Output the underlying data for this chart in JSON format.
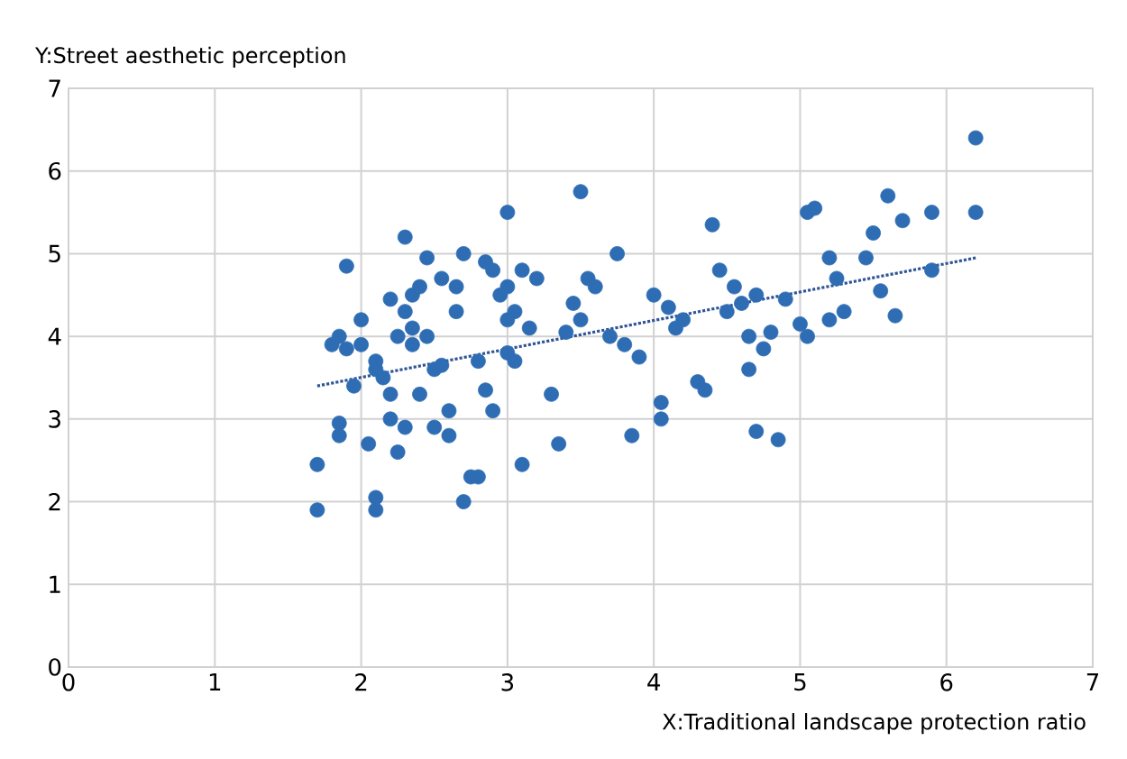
{
  "chart_data": {
    "type": "scatter",
    "xlabel": "X:Traditional landscape protection ratio",
    "ylabel": "Y:Street aesthetic perception",
    "xlim": [
      0,
      7
    ],
    "ylim": [
      0,
      7
    ],
    "xticks": [
      0,
      1,
      2,
      3,
      4,
      5,
      6,
      7
    ],
    "yticks": [
      0,
      1,
      2,
      3,
      4,
      5,
      6,
      7
    ],
    "grid": true,
    "marker": "circle",
    "series": [
      {
        "color": "#2e6db4",
        "x": [
          1.7,
          1.7,
          1.85,
          1.85,
          1.8,
          1.85,
          1.9,
          1.9,
          1.95,
          2.0,
          2.0,
          2.05,
          2.1,
          2.1,
          2.1,
          2.1,
          2.15,
          2.2,
          2.2,
          2.2,
          2.25,
          2.25,
          2.3,
          2.3,
          2.35,
          2.35,
          2.35,
          2.3,
          2.4,
          2.4,
          2.45,
          2.45,
          2.5,
          2.5,
          2.55,
          2.55,
          2.6,
          2.6,
          2.65,
          2.65,
          2.7,
          2.7,
          2.75,
          2.8,
          2.8,
          2.85,
          2.85,
          2.9,
          2.9,
          2.95,
          3.0,
          3.0,
          3.0,
          3.0,
          3.05,
          3.05,
          3.1,
          3.1,
          3.15,
          3.2,
          3.3,
          3.35,
          3.4,
          3.45,
          3.5,
          3.5,
          3.55,
          3.6,
          3.7,
          3.75,
          3.8,
          3.85,
          3.9,
          4.0,
          4.05,
          4.05,
          4.1,
          4.15,
          4.2,
          4.3,
          4.35,
          4.4,
          4.45,
          4.5,
          4.55,
          4.6,
          4.65,
          4.65,
          4.7,
          4.7,
          4.75,
          4.8,
          4.85,
          4.9,
          5.0,
          5.05,
          5.05,
          5.1,
          5.2,
          5.2,
          5.25,
          5.3,
          5.45,
          5.5,
          5.55,
          5.6,
          5.65,
          5.7,
          5.9,
          5.9,
          6.2,
          6.2
        ],
        "values": [
          1.9,
          2.45,
          2.95,
          2.8,
          3.9,
          4.0,
          4.85,
          3.85,
          3.4,
          3.9,
          4.2,
          2.7,
          2.05,
          1.9,
          3.7,
          3.6,
          3.5,
          4.45,
          3.3,
          3.0,
          2.6,
          4.0,
          5.2,
          4.3,
          4.5,
          4.1,
          3.9,
          2.9,
          4.6,
          3.3,
          4.95,
          4.0,
          3.6,
          2.9,
          3.65,
          4.7,
          3.1,
          2.8,
          4.3,
          4.6,
          2.0,
          5.0,
          2.3,
          2.3,
          3.7,
          3.35,
          4.9,
          3.1,
          4.8,
          4.5,
          5.5,
          4.2,
          4.6,
          3.8,
          3.7,
          4.3,
          4.8,
          2.45,
          4.1,
          4.7,
          3.3,
          2.7,
          4.05,
          4.4,
          5.75,
          4.2,
          4.7,
          4.6,
          4.0,
          5.0,
          3.9,
          2.8,
          3.75,
          4.5,
          3.0,
          3.2,
          4.35,
          4.1,
          4.2,
          3.45,
          3.35,
          5.35,
          4.8,
          4.3,
          4.6,
          4.4,
          3.6,
          4.0,
          2.85,
          4.5,
          3.85,
          4.05,
          2.75,
          4.45,
          4.15,
          4.0,
          5.5,
          5.55,
          4.2,
          4.95,
          4.7,
          4.3,
          4.95,
          5.25,
          4.55,
          5.7,
          4.25,
          5.4,
          4.8,
          5.5,
          6.4,
          5.5
        ]
      },
      {
        "type": "line",
        "color": "#2f5597",
        "line_style": "dotted",
        "marker": "none",
        "x": [
          1.7,
          6.2
        ],
        "values": [
          3.4,
          4.95
        ]
      }
    ]
  }
}
